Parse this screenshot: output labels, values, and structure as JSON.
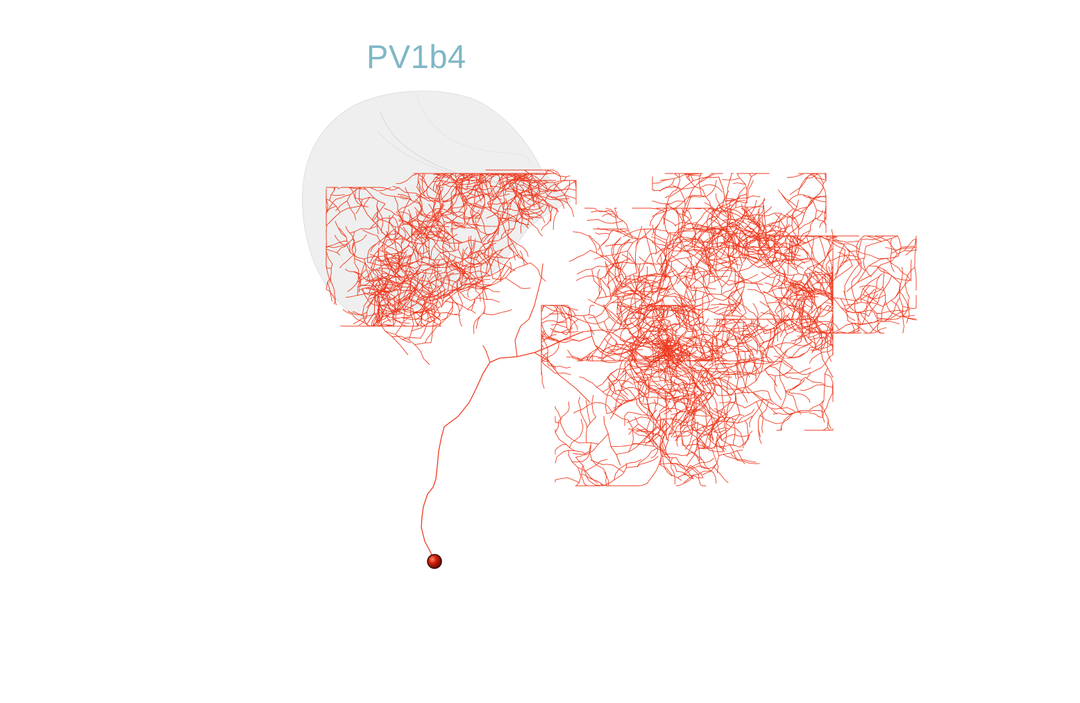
{
  "title": "PV1b4",
  "colors": {
    "title": "#7fb7c6",
    "neuron": "#ee3a1f",
    "soma_fill": "#d11d0a",
    "soma_edge": "#3b0a00",
    "neuropil_fill": "#e9e9e9",
    "neuropil_edge": "#d6d6d6"
  }
}
